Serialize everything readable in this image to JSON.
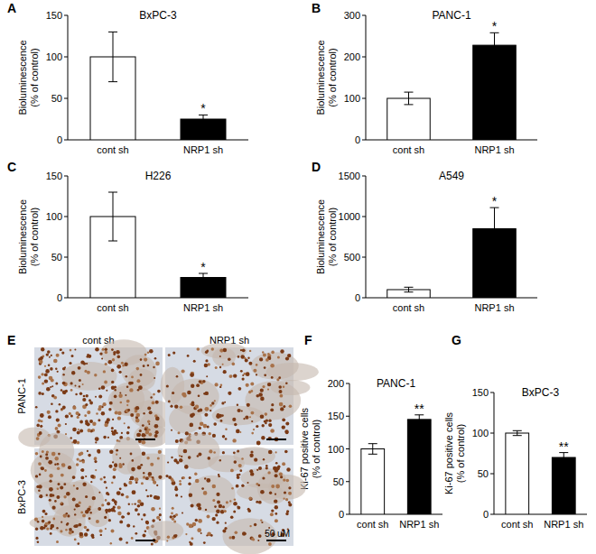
{
  "chart_data": [
    {
      "type": "bar",
      "panel_label": "A",
      "title": "BxPC-3",
      "y_label": [
        "Bioluminescence",
        "(% of control)"
      ],
      "categories": [
        "cont sh",
        "NRP1 sh"
      ],
      "values": [
        100,
        25
      ],
      "errors": [
        30,
        5
      ],
      "annotations": [
        null,
        "*"
      ],
      "colors": [
        "#ffffff",
        "#000000"
      ],
      "ylim": [
        0,
        150
      ],
      "yticks": [
        0,
        50,
        100,
        150
      ]
    },
    {
      "type": "bar",
      "panel_label": "B",
      "title": "PANC-1",
      "y_label": [
        "Bioluminescence",
        "(% of control)"
      ],
      "categories": [
        "cont sh",
        "NRP1 sh"
      ],
      "values": [
        100,
        228
      ],
      "errors": [
        15,
        30
      ],
      "annotations": [
        null,
        "*"
      ],
      "colors": [
        "#ffffff",
        "#000000"
      ],
      "ylim": [
        0,
        300
      ],
      "yticks": [
        0,
        100,
        200,
        300
      ]
    },
    {
      "type": "bar",
      "panel_label": "C",
      "title": "H226",
      "y_label": [
        "Bioluminescence",
        "(% of control)"
      ],
      "categories": [
        "cont sh",
        "NRP1 sh"
      ],
      "values": [
        100,
        25
      ],
      "errors": [
        30,
        5
      ],
      "annotations": [
        null,
        "*"
      ],
      "colors": [
        "#ffffff",
        "#000000"
      ],
      "ylim": [
        0,
        150
      ],
      "yticks": [
        0,
        50,
        100,
        150
      ]
    },
    {
      "type": "bar",
      "panel_label": "D",
      "title": "A549",
      "y_label": [
        "Bioluminescence",
        "(% of control)"
      ],
      "categories": [
        "cont sh",
        "NRP1 sh"
      ],
      "values": [
        100,
        850
      ],
      "errors": [
        30,
        260
      ],
      "annotations": [
        null,
        "*"
      ],
      "colors": [
        "#ffffff",
        "#000000"
      ],
      "ylim": [
        0,
        1500
      ],
      "yticks": [
        0,
        500,
        1000,
        1500
      ]
    },
    {
      "type": "bar",
      "panel_label": "F",
      "title": "PANC-1",
      "y_label": [
        "Ki-67 positive cells",
        "(% of control)"
      ],
      "categories": [
        "cont sh",
        "NRP1 sh"
      ],
      "values": [
        100,
        145
      ],
      "errors": [
        8,
        7
      ],
      "annotations": [
        null,
        "**"
      ],
      "colors": [
        "#ffffff",
        "#000000"
      ],
      "ylim": [
        0,
        200
      ],
      "yticks": [
        0,
        50,
        100,
        150,
        200
      ]
    },
    {
      "type": "bar",
      "panel_label": "G",
      "title": "BxPC-3",
      "y_label": [
        "Ki-67 positive cells",
        "(% of control)"
      ],
      "categories": [
        "cont sh",
        "NRP1 sh"
      ],
      "values": [
        100,
        70
      ],
      "errors": [
        3,
        6
      ],
      "annotations": [
        null,
        "**"
      ],
      "colors": [
        "#ffffff",
        "#000000"
      ],
      "ylim": [
        0,
        150
      ],
      "yticks": [
        0,
        50,
        100,
        150
      ]
    }
  ],
  "image_panel": {
    "panel_label": "E",
    "columns": [
      "cont sh",
      "NRP1 sh"
    ],
    "rows": [
      "PANC-1",
      "BxPC-3"
    ],
    "scale_bar": "50 uM"
  }
}
